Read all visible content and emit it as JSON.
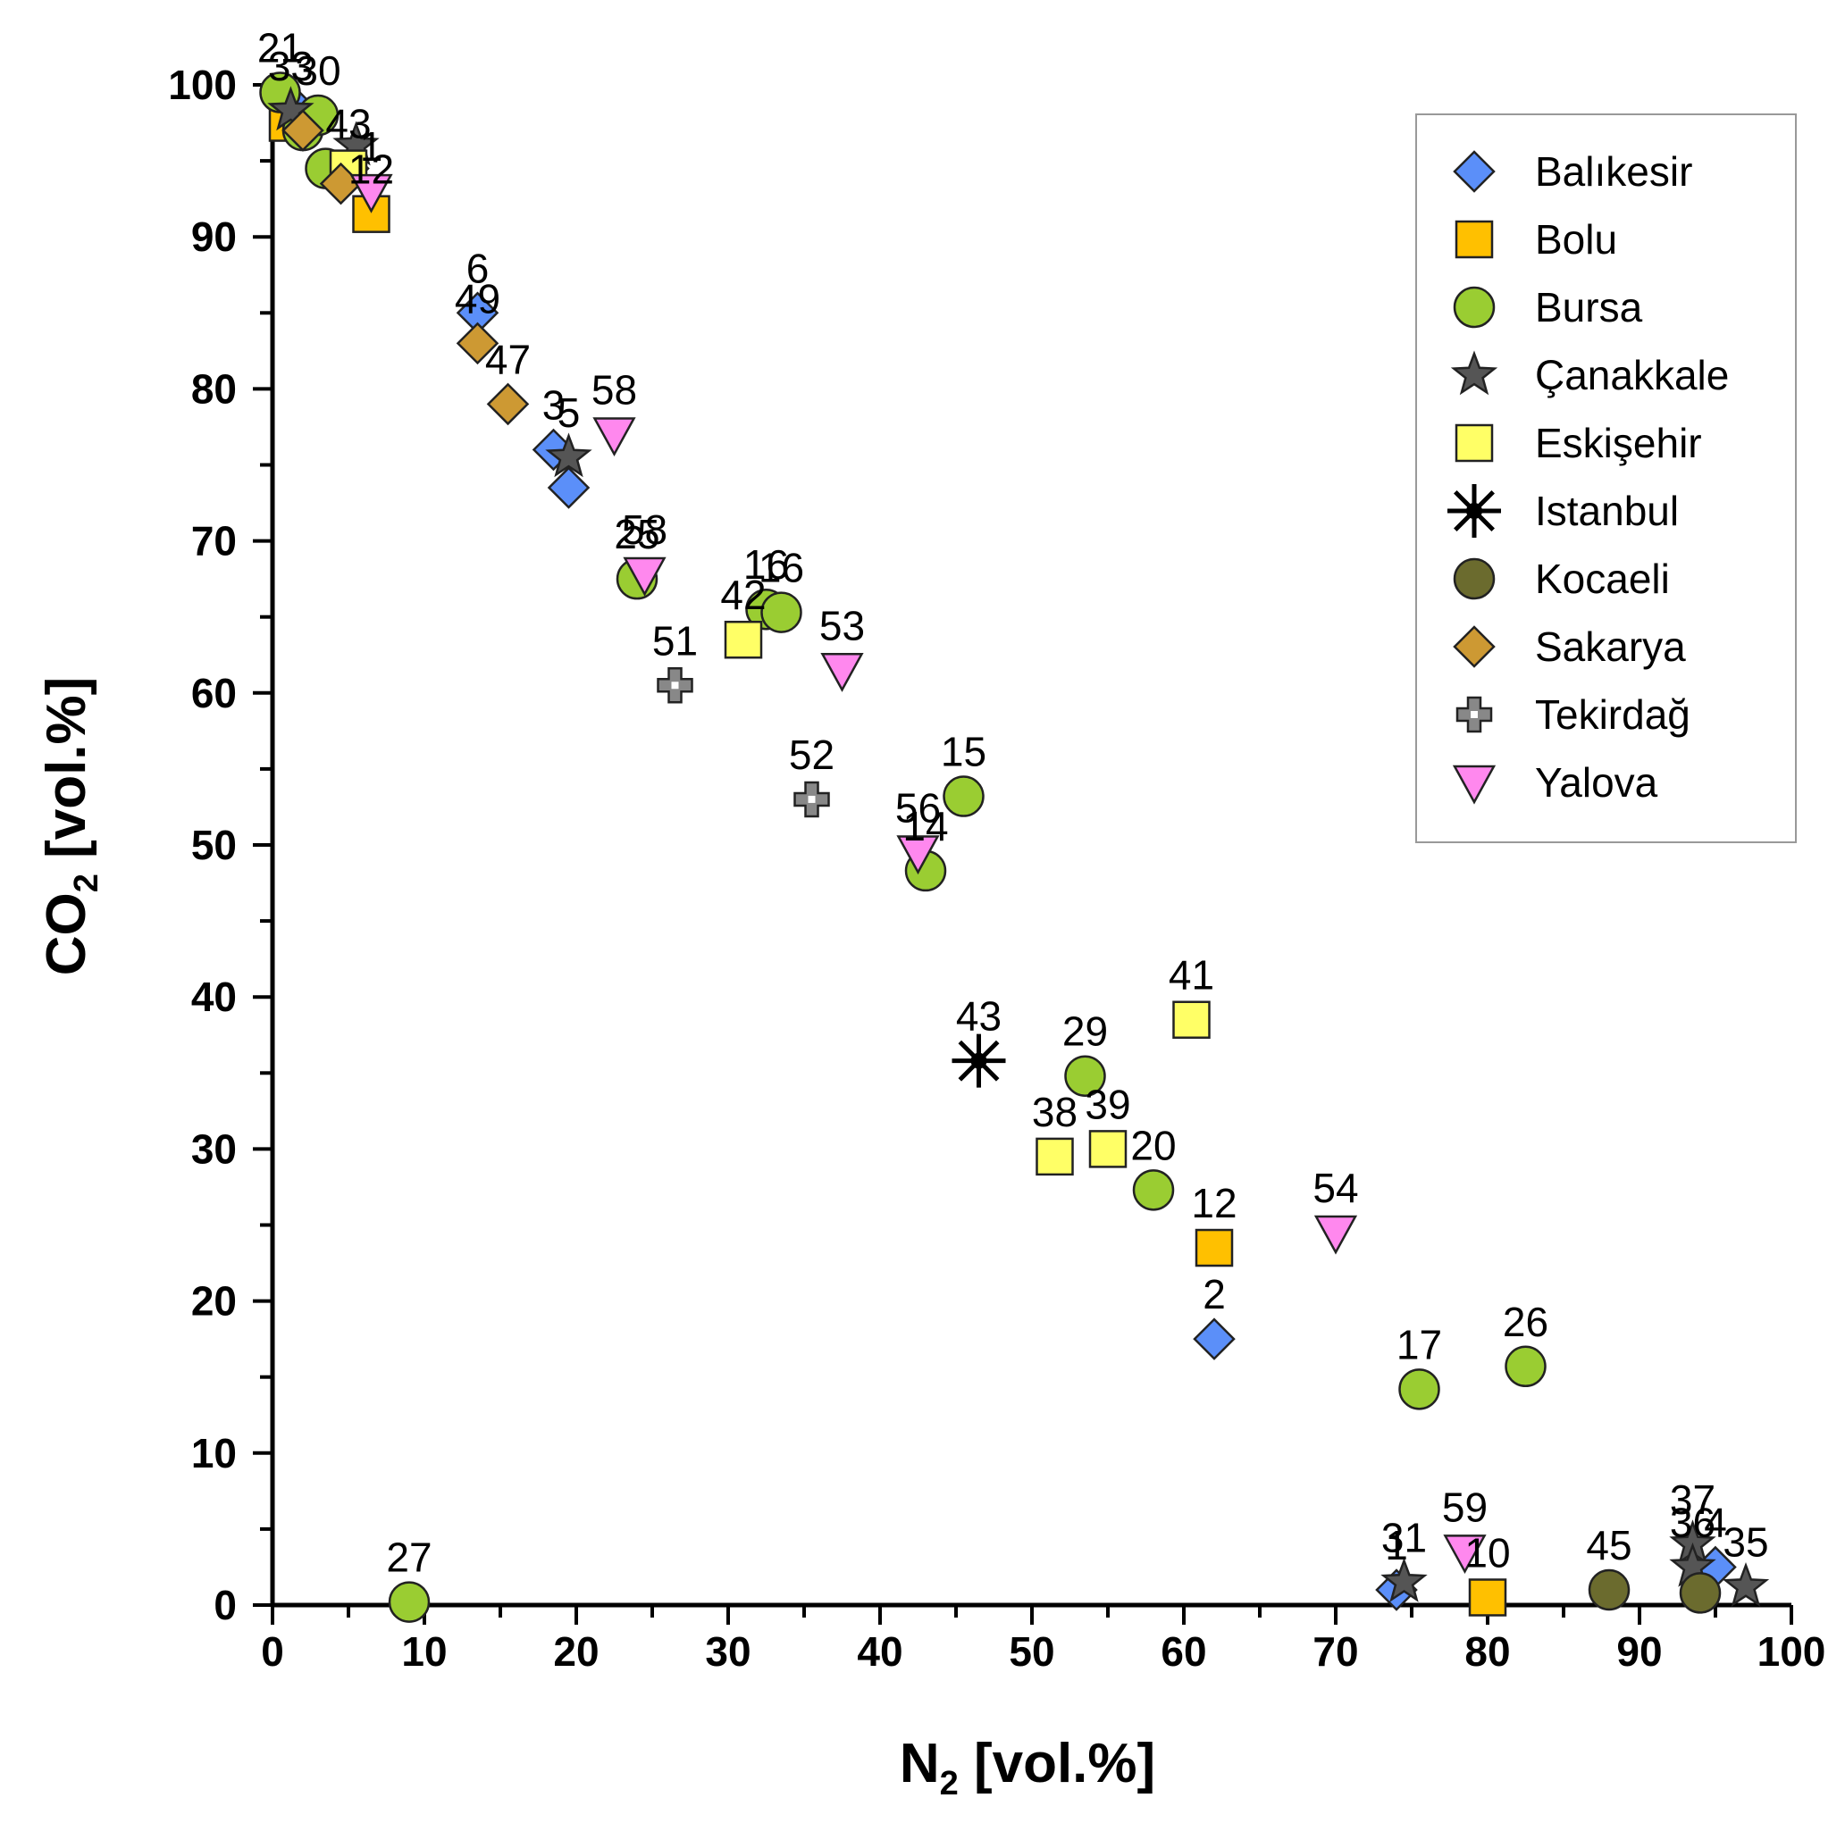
{
  "chart_data": {
    "type": "scatter",
    "title": "",
    "xlabel": "N",
    "xlabel_sub": "2",
    "xlabel_unit": " [vol.%]",
    "ylabel": "CO",
    "ylabel_sub": "2",
    "ylabel_unit": " [vol.%]",
    "xlim": [
      0,
      100
    ],
    "ylim": [
      0,
      100
    ],
    "xticks": [
      0,
      10,
      20,
      30,
      40,
      50,
      60,
      70,
      80,
      90,
      100
    ],
    "yticks": [
      0,
      10,
      20,
      30,
      40,
      50,
      60,
      70,
      80,
      90,
      100
    ],
    "grid": false,
    "legend_position": "top-right",
    "series": [
      {
        "name": "Balıkesir",
        "marker": "diamond",
        "color": "#5b8ff9",
        "points": [
          {
            "x": 13.5,
            "y": 85,
            "label": "6"
          },
          {
            "x": 18.5,
            "y": 76,
            "label": "3"
          },
          {
            "x": 19.5,
            "y": 73.5,
            "label": ""
          },
          {
            "x": 62,
            "y": 17.5,
            "label": "2"
          },
          {
            "x": 74,
            "y": 1,
            "label": "1"
          },
          {
            "x": 95,
            "y": 2.5,
            "label": "4"
          },
          {
            "x": 1.5,
            "y": 98.5,
            "label": ""
          },
          {
            "x": 5,
            "y": 94.5,
            "label": ""
          }
        ]
      },
      {
        "name": "Bolu",
        "marker": "square",
        "color": "#ffc000",
        "points": [
          {
            "x": 6.5,
            "y": 91.5,
            "label": "12"
          },
          {
            "x": 1,
            "y": 97.5,
            "label": ""
          },
          {
            "x": 62,
            "y": 23.5,
            "label": "12"
          },
          {
            "x": 80,
            "y": 0.5,
            "label": "10"
          }
        ]
      },
      {
        "name": "Bursa",
        "marker": "circle",
        "color": "#9acd32",
        "points": [
          {
            "x": 0.5,
            "y": 99.5,
            "label": "21"
          },
          {
            "x": 2,
            "y": 97,
            "label": ""
          },
          {
            "x": 3,
            "y": 98,
            "label": "30"
          },
          {
            "x": 3.5,
            "y": 94.5,
            "label": ""
          },
          {
            "x": 24,
            "y": 67.5,
            "label": "25"
          },
          {
            "x": 32.5,
            "y": 65.5,
            "label": "16"
          },
          {
            "x": 33.5,
            "y": 65.3,
            "label": "16"
          },
          {
            "x": 45.5,
            "y": 53.2,
            "label": "15"
          },
          {
            "x": 43,
            "y": 48.3,
            "label": "14"
          },
          {
            "x": 53.5,
            "y": 34.8,
            "label": "29"
          },
          {
            "x": 58,
            "y": 27.3,
            "label": "20"
          },
          {
            "x": 75.5,
            "y": 14.2,
            "label": "17"
          },
          {
            "x": 82.5,
            "y": 15.7,
            "label": "26"
          },
          {
            "x": 9,
            "y": 0.2,
            "label": "27"
          }
        ]
      },
      {
        "name": "Çanakkale",
        "marker": "star",
        "color": "#555555",
        "points": [
          {
            "x": 1.2,
            "y": 98.3,
            "label": "33"
          },
          {
            "x": 5.5,
            "y": 96,
            "label": ""
          },
          {
            "x": 19.5,
            "y": 75.5,
            "label": "5"
          },
          {
            "x": 74.5,
            "y": 1.5,
            "label": "31"
          },
          {
            "x": 93.5,
            "y": 4,
            "label": "37"
          },
          {
            "x": 93.5,
            "y": 2.5,
            "label": "36"
          },
          {
            "x": 97,
            "y": 1.2,
            "label": "35"
          }
        ]
      },
      {
        "name": "Eskişehir",
        "marker": "square",
        "color": "#ffff66",
        "points": [
          {
            "x": 5,
            "y": 94.5,
            "label": "43"
          },
          {
            "x": 31,
            "y": 63.5,
            "label": "42"
          },
          {
            "x": 60.5,
            "y": 38.5,
            "label": "41"
          },
          {
            "x": 51.5,
            "y": 29.5,
            "label": "38"
          },
          {
            "x": 55,
            "y": 30,
            "label": "39"
          }
        ]
      },
      {
        "name": "Istanbul",
        "marker": "asterisk",
        "color": "#000000",
        "points": [
          {
            "x": 46.5,
            "y": 35.8,
            "label": "43"
          }
        ]
      },
      {
        "name": "Kocaeli",
        "marker": "circle",
        "color": "#6b6b2e",
        "points": [
          {
            "x": 88,
            "y": 1,
            "label": "45"
          },
          {
            "x": 94,
            "y": 0.8,
            "label": ""
          }
        ]
      },
      {
        "name": "Sakarya",
        "marker": "diamond",
        "color": "#cd9933",
        "points": [
          {
            "x": 2,
            "y": 97,
            "label": ""
          },
          {
            "x": 4.5,
            "y": 93.5,
            "label": ""
          },
          {
            "x": 13.5,
            "y": 83,
            "label": "49"
          },
          {
            "x": 15.5,
            "y": 79,
            "label": "47"
          }
        ]
      },
      {
        "name": "Tekirdağ",
        "marker": "cross",
        "color": "#888888",
        "points": [
          {
            "x": 26.5,
            "y": 60.5,
            "label": "51"
          },
          {
            "x": 35.5,
            "y": 53,
            "label": "52"
          }
        ]
      },
      {
        "name": "Yalova",
        "marker": "triangle-down",
        "color": "#ff88ee",
        "points": [
          {
            "x": 6.5,
            "y": 93,
            "label": "1"
          },
          {
            "x": 22.5,
            "y": 77,
            "label": "58"
          },
          {
            "x": 24.5,
            "y": 67.8,
            "label": "58"
          },
          {
            "x": 37.5,
            "y": 61.5,
            "label": "53"
          },
          {
            "x": 42.5,
            "y": 49.5,
            "label": "56"
          },
          {
            "x": 70,
            "y": 24.5,
            "label": "54"
          },
          {
            "x": 78.5,
            "y": 3.5,
            "label": "59"
          }
        ]
      }
    ]
  }
}
